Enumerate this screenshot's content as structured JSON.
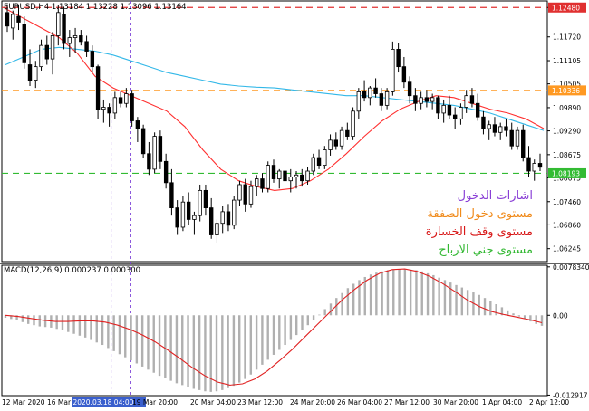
{
  "colors": {
    "background": "#ffffff",
    "candle_bull": "#ffffff",
    "candle_bear": "#000000",
    "candle_border": "#000000",
    "ma_fast": "#ff3030",
    "ma_slow": "#33b8e8",
    "macd_hist": "#b0b0b0",
    "macd_signal": "#e02020",
    "stop_loss": "#e03030",
    "entry": "#ff9922",
    "take_profit": "#33bb33",
    "entry_marker": "#7a3fd6",
    "label_entries": "#8a3fd6",
    "label_entry_level": "#f08a1a",
    "label_stop_loss": "#d81818",
    "label_take_profit": "#33b833",
    "axis_text": "#000000",
    "price_tag_sl_bg": "#e03030",
    "price_tag_entry_bg": "#ff9922",
    "price_tag_tp_bg": "#33bb33",
    "date_highlight_bg": "#3a5fcd"
  },
  "price_chart": {
    "header": "EURUSD,H4  1.13184 1.13228 1.13096 1.13164",
    "levels": {
      "stop_loss": {
        "value": 1.1248,
        "label": "1.12480"
      },
      "entry": {
        "value": 1.10336,
        "label": "1.10336"
      },
      "take_profit": {
        "value": 1.08193,
        "label": "1.08193"
      }
    }
  },
  "legend": {
    "entries": "اشارات الدخول",
    "entry_level": "مستوى دخول الصفقة",
    "stop_loss": "مستوى وقف الخسارة",
    "take_profit": "مستوى جني الارباح"
  },
  "macd": {
    "header": "MACD(12,26,9) 0.000237 0.000300"
  },
  "time_axis": {
    "highlight": "2020.03.18 04:00"
  },
  "chart_data": {
    "type": "candlestick",
    "title": "EURUSD,H4",
    "ohlc_readout": {
      "open": 1.13184,
      "high": 1.13228,
      "low": 1.13096,
      "close": 1.13164
    },
    "ylim": [
      1.0591,
      1.1265
    ],
    "y_ticks": [
      "1.12480",
      "1.11720",
      "1.11105",
      "1.10505",
      "1.09890",
      "1.09290",
      "1.08675",
      "1.08075",
      "1.07460",
      "1.06860",
      "1.06245"
    ],
    "x_ticks": [
      "12 Mar 2020",
      "16 Mar 2020.03.18 04:00",
      "19 Mar 20:00",
      "20 Mar 04:00",
      "23 Mar 12:00",
      "24 Mar 20:00",
      "26 Mar 04:00",
      "27 Mar 12:00",
      "30 Mar 20:00",
      "1 Apr 04:00",
      "2 Apr 12:00"
    ],
    "candles": [
      [
        1.1235,
        1.1255,
        1.1185,
        1.12
      ],
      [
        1.1195,
        1.124,
        1.1165,
        1.123
      ],
      [
        1.1225,
        1.1255,
        1.119,
        1.121
      ],
      [
        1.1205,
        1.1225,
        1.109,
        1.1105
      ],
      [
        1.11,
        1.114,
        1.1045,
        1.106
      ],
      [
        1.106,
        1.111,
        1.104,
        1.1095
      ],
      [
        1.1095,
        1.1165,
        1.1085,
        1.115
      ],
      [
        1.115,
        1.1175,
        1.11,
        1.1115
      ],
      [
        1.1115,
        1.1185,
        1.1075,
        1.1175
      ],
      [
        1.1175,
        1.1255,
        1.115,
        1.1235
      ],
      [
        1.123,
        1.125,
        1.114,
        1.1155
      ],
      [
        1.1155,
        1.119,
        1.112,
        1.117
      ],
      [
        1.117,
        1.1195,
        1.113,
        1.1175
      ],
      [
        1.1175,
        1.119,
        1.115,
        1.116
      ],
      [
        1.116,
        1.1175,
        1.112,
        1.1135
      ],
      [
        1.1135,
        1.115,
        1.108,
        1.1095
      ],
      [
        1.1095,
        1.11,
        1.096,
        1.0985
      ],
      [
        1.0985,
        1.101,
        1.095,
        1.099
      ],
      [
        1.099,
        1.1,
        1.094,
        1.0975
      ],
      [
        1.0975,
        1.103,
        1.096,
        1.1015
      ],
      [
        1.1015,
        1.103,
        1.099,
        1.1
      ],
      [
        1.1,
        1.104,
        1.099,
        1.1025
      ],
      [
        1.1025,
        1.1035,
        1.094,
        1.0955
      ],
      [
        1.0955,
        1.0965,
        1.09,
        1.0935
      ],
      [
        1.0935,
        1.0945,
        1.086,
        1.087
      ],
      [
        1.087,
        1.09,
        1.0815,
        1.083
      ],
      [
        1.083,
        1.0925,
        1.082,
        1.0915
      ],
      [
        1.0915,
        1.093,
        1.083,
        1.085
      ],
      [
        1.085,
        1.087,
        1.078,
        1.0795
      ],
      [
        1.0795,
        1.083,
        1.071,
        1.073
      ],
      [
        1.073,
        1.075,
        1.066,
        1.068
      ],
      [
        1.068,
        1.076,
        1.067,
        1.0745
      ],
      [
        1.0745,
        1.077,
        1.0685,
        1.07
      ],
      [
        1.07,
        1.072,
        1.066,
        1.071
      ],
      [
        1.071,
        1.079,
        1.0695,
        1.0775
      ],
      [
        1.0775,
        1.079,
        1.071,
        1.073
      ],
      [
        1.073,
        1.0755,
        1.065,
        1.066
      ],
      [
        1.066,
        1.07,
        1.064,
        1.069
      ],
      [
        1.069,
        1.0735,
        1.0665,
        1.072
      ],
      [
        1.072,
        1.074,
        1.067,
        1.0685
      ],
      [
        1.0685,
        1.076,
        1.0675,
        1.075
      ],
      [
        1.075,
        1.08,
        1.0735,
        1.079
      ],
      [
        1.079,
        1.0805,
        1.072,
        1.074
      ],
      [
        1.074,
        1.08,
        1.073,
        1.0785
      ],
      [
        1.0785,
        1.0815,
        1.076,
        1.0805
      ],
      [
        1.0805,
        1.082,
        1.077,
        1.078
      ],
      [
        1.078,
        1.085,
        1.077,
        1.084
      ],
      [
        1.084,
        1.0855,
        1.0795,
        1.0805
      ],
      [
        1.0805,
        1.083,
        1.078,
        1.0825
      ],
      [
        1.0825,
        1.084,
        1.079,
        1.08
      ],
      [
        1.08,
        1.083,
        1.077,
        1.081
      ],
      [
        1.081,
        1.0825,
        1.078,
        1.0815
      ],
      [
        1.0815,
        1.083,
        1.0785,
        1.08
      ],
      [
        1.08,
        1.0835,
        1.079,
        1.0825
      ],
      [
        1.0825,
        1.087,
        1.0815,
        1.086
      ],
      [
        1.086,
        1.088,
        1.083,
        1.084
      ],
      [
        1.084,
        1.089,
        1.083,
        1.088
      ],
      [
        1.088,
        1.092,
        1.0865,
        1.0905
      ],
      [
        1.0905,
        1.0925,
        1.088,
        1.089
      ],
      [
        1.089,
        1.094,
        1.088,
        1.093
      ],
      [
        1.093,
        1.095,
        1.0905,
        1.0915
      ],
      [
        1.0915,
        1.099,
        1.0905,
        1.098
      ],
      [
        1.098,
        1.104,
        1.096,
        1.103
      ],
      [
        1.103,
        1.106,
        1.1005,
        1.1015
      ],
      [
        1.1015,
        1.1045,
        1.0995,
        1.104
      ],
      [
        1.104,
        1.1065,
        1.1015,
        1.1025
      ],
      [
        1.1025,
        1.104,
        1.098,
        1.0995
      ],
      [
        1.0995,
        1.104,
        1.0985,
        1.103
      ],
      [
        1.103,
        1.116,
        1.102,
        1.114
      ],
      [
        1.114,
        1.1155,
        1.108,
        1.1095
      ],
      [
        1.1095,
        1.112,
        1.104,
        1.1055
      ],
      [
        1.1055,
        1.107,
        1.1,
        1.102
      ],
      [
        1.102,
        1.104,
        1.098,
        1.1
      ],
      [
        1.1,
        1.103,
        1.0985,
        1.1015
      ],
      [
        1.1015,
        1.1035,
        1.099,
        1.1005
      ],
      [
        1.1005,
        1.1025,
        1.0985,
        1.1015
      ],
      [
        1.1015,
        1.102,
        1.096,
        1.0975
      ],
      [
        1.0975,
        1.101,
        1.095,
        1.0995
      ],
      [
        1.0995,
        1.102,
        1.096,
        1.097
      ],
      [
        1.097,
        1.099,
        1.0935,
        1.096
      ],
      [
        1.096,
        1.1,
        1.0945,
        1.099
      ],
      [
        1.099,
        1.1035,
        1.0975,
        1.102
      ],
      [
        1.102,
        1.104,
        1.099,
        1.1
      ],
      [
        1.1,
        1.1025,
        1.0955,
        1.0965
      ],
      [
        1.0965,
        1.098,
        1.092,
        1.0935
      ],
      [
        1.0935,
        1.0955,
        1.0905,
        1.0945
      ],
      [
        1.0945,
        1.0965,
        1.0915,
        1.0925
      ],
      [
        1.0925,
        1.095,
        1.0905,
        1.094
      ],
      [
        1.094,
        1.096,
        1.0915,
        1.093
      ],
      [
        1.093,
        1.095,
        1.088,
        1.089
      ],
      [
        1.089,
        1.094,
        1.088,
        1.093
      ],
      [
        1.093,
        1.0945,
        1.085,
        1.086
      ],
      [
        1.086,
        1.089,
        1.081,
        1.0825
      ],
      [
        1.0825,
        1.0855,
        1.08,
        1.0845
      ],
      [
        1.0845,
        1.087,
        1.0825,
        1.0835
      ]
    ],
    "ma_fast": [
      1.1245,
      1.122,
      1.1195,
      1.117,
      1.113,
      1.107,
      1.104,
      1.102,
      1.1,
      1.098,
      1.094,
      1.088,
      1.083,
      1.08,
      1.0785,
      1.0775,
      1.078,
      1.08,
      1.083,
      1.087,
      1.0915,
      1.0955,
      1.0985,
      1.1005,
      1.102,
      1.1015,
      1.1,
      1.0985,
      1.0975,
      1.096,
      1.0935
    ],
    "ma_slow": [
      1.11,
      1.112,
      1.114,
      1.1145,
      1.114,
      1.1135,
      1.1125,
      1.111,
      1.1095,
      1.108,
      1.107,
      1.106,
      1.105,
      1.1045,
      1.1042,
      1.104,
      1.1035,
      1.103,
      1.1025,
      1.102,
      1.102,
      1.1015,
      1.101,
      1.1005,
      1.1,
      1.0995,
      1.0985,
      1.0975,
      1.096,
      1.0945,
      1.093
    ],
    "macd_ylim": [
      -0.013,
      0.0081
    ],
    "macd_y_ticks": [
      "0.0078340",
      "0.00",
      "-0.012917"
    ],
    "macd_hist": [
      -0.0004,
      -0.0006,
      -0.0008,
      -0.0011,
      -0.0014,
      -0.0016,
      -0.0018,
      -0.0019,
      -0.002,
      -0.0022,
      -0.0024,
      -0.0027,
      -0.003,
      -0.0033,
      -0.0036,
      -0.004,
      -0.0044,
      -0.0048,
      -0.0053,
      -0.0058,
      -0.0063,
      -0.0068,
      -0.0073,
      -0.0078,
      -0.0083,
      -0.0088,
      -0.0093,
      -0.0098,
      -0.0102,
      -0.0106,
      -0.011,
      -0.0113,
      -0.0116,
      -0.0119,
      -0.0121,
      -0.0123,
      -0.0124,
      -0.0123,
      -0.0121,
      -0.0118,
      -0.0114,
      -0.0109,
      -0.0103,
      -0.0096,
      -0.0088,
      -0.008,
      -0.0072,
      -0.0064,
      -0.0056,
      -0.0048,
      -0.004,
      -0.0032,
      -0.0024,
      -0.0016,
      -0.0008,
      0.0001,
      0.001,
      0.0019,
      0.0028,
      0.0036,
      0.0044,
      0.0051,
      0.0057,
      0.0062,
      0.0066,
      0.0069,
      0.0071,
      0.0073,
      0.0074,
      0.0075,
      0.0075,
      0.0074,
      0.0073,
      0.0071,
      0.0068,
      0.0065,
      0.0061,
      0.0057,
      0.0053,
      0.0049,
      0.0045,
      0.0041,
      0.0037,
      0.0033,
      0.0028,
      0.0023,
      0.0018,
      0.0013,
      0.0008,
      0.0003,
      -0.0002,
      -0.0006,
      -0.001,
      -0.0014,
      -0.0017
    ],
    "macd_signal": [
      0.0,
      -0.0002,
      -0.0005,
      -0.0008,
      -0.001,
      -0.001,
      -0.0009,
      -0.0009,
      -0.0011,
      -0.0016,
      -0.0023,
      -0.0032,
      -0.0043,
      -0.0056,
      -0.007,
      -0.0085,
      -0.0098,
      -0.0108,
      -0.0113,
      -0.0111,
      -0.0103,
      -0.009,
      -0.0073,
      -0.0055,
      -0.0035,
      -0.0015,
      0.0005,
      0.0025,
      0.0042,
      0.0057,
      0.0068,
      0.0074,
      0.0075,
      0.0071,
      0.0063,
      0.0052,
      0.0039,
      0.0025,
      0.0014,
      0.0006,
      0.0001,
      -0.0003,
      -0.0007,
      -0.0012
    ]
  }
}
